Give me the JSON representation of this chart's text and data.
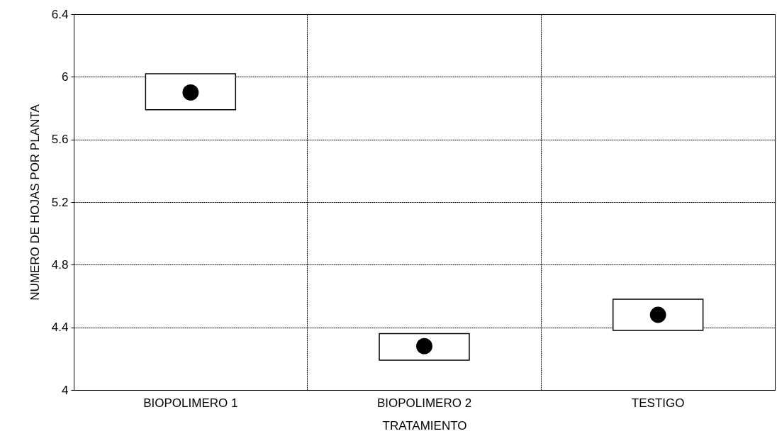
{
  "chart_data": {
    "type": "bar",
    "xlabel": "TRATAMIENTO",
    "ylabel": "NUMERO DE HOJAS POR PLANTA",
    "categories": [
      "BIOPOLIMERO 1",
      "BIOPOLIMERO 2",
      "TESTIGO"
    ],
    "ylim": [
      4,
      6.4
    ],
    "yticks": [
      4,
      4.4,
      4.8,
      5.2,
      5.6,
      6,
      6.4
    ],
    "grid": true,
    "series": [
      {
        "type": "bar",
        "color": "#ffffff",
        "base": [
          5.79,
          4.19,
          4.38
        ],
        "values": [
          0.23,
          0.17,
          0.2
        ]
      },
      {
        "type": "scatter",
        "x": [
          "BIOPOLIMERO 1",
          "BIOPOLIMERO 2",
          "TESTIGO"
        ],
        "color": "#000000",
        "marker": "circle",
        "values": [
          5.9,
          4.28,
          4.48
        ]
      }
    ]
  }
}
